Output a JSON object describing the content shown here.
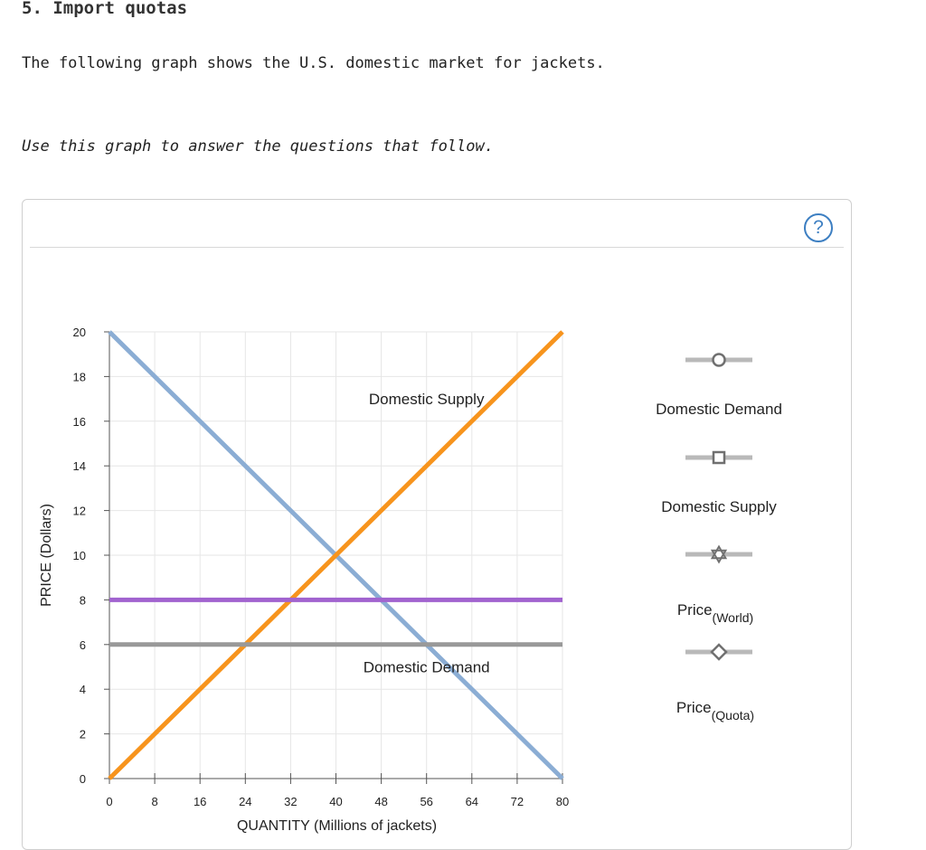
{
  "page": {
    "title": "5. Import quotas",
    "description": "The following graph shows the U.S. domestic market for jackets.",
    "instruction": "Use this graph to answer the questions that follow.",
    "help_icon": "question-mark-icon",
    "help_symbol": "?"
  },
  "chart_data": {
    "type": "line",
    "xlabel": "QUANTITY (Millions of jackets)",
    "ylabel": "PRICE (Dollars)",
    "xlim": [
      0,
      80
    ],
    "ylim": [
      0,
      20
    ],
    "xticks": [
      0,
      8,
      16,
      24,
      32,
      40,
      48,
      56,
      64,
      72,
      80
    ],
    "yticks": [
      0,
      2,
      4,
      6,
      8,
      10,
      12,
      14,
      16,
      18,
      20
    ],
    "grid": true,
    "series": [
      {
        "name": "Domestic Demand",
        "color": "#8badd4",
        "points": [
          [
            0,
            20
          ],
          [
            80,
            0
          ]
        ]
      },
      {
        "name": "Domestic Supply",
        "color": "#f7941d",
        "points": [
          [
            0,
            0
          ],
          [
            80,
            20
          ]
        ]
      },
      {
        "name": "",
        "color": "#a163cf",
        "points": [
          [
            0,
            8
          ],
          [
            80,
            8
          ]
        ]
      },
      {
        "name": "",
        "color": "#999999",
        "points": [
          [
            0,
            6
          ],
          [
            80,
            6
          ]
        ]
      }
    ],
    "annotations": [
      {
        "text": "Domestic Supply",
        "x": 56,
        "y": 17
      },
      {
        "text": "Domestic Demand",
        "x": 56,
        "y": 5
      }
    ],
    "legend": {
      "placement": "right",
      "items": [
        {
          "label": "Domestic Demand",
          "sub": "",
          "marker": "circle"
        },
        {
          "label": "Domestic Supply",
          "sub": "",
          "marker": "square"
        },
        {
          "label": "Price",
          "sub": "(World)",
          "marker": "star"
        },
        {
          "label": "Price",
          "sub": "(Quota)",
          "marker": "diamond"
        }
      ]
    }
  }
}
